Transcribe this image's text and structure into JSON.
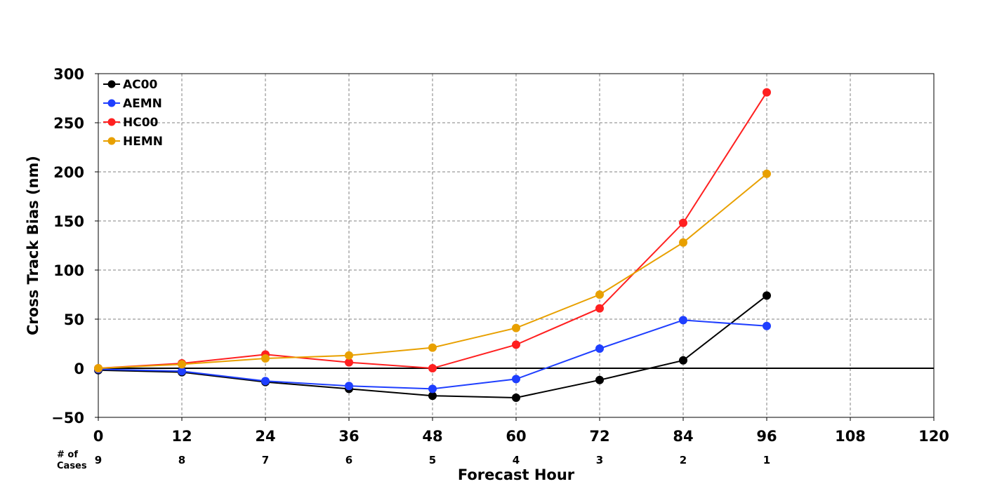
{
  "chart_data": {
    "type": "line",
    "xlabel": "Forecast Hour",
    "ylabel": "Cross Track Bias (nm)",
    "xlim": [
      0,
      120
    ],
    "ylim": [
      -50,
      300
    ],
    "x_ticks": [
      0,
      12,
      24,
      36,
      48,
      60,
      72,
      84,
      96,
      108,
      120
    ],
    "y_ticks": [
      -50,
      0,
      50,
      100,
      150,
      200,
      250,
      300
    ],
    "y_tick_labels": [
      "−50",
      "0",
      "50",
      "100",
      "150",
      "200",
      "250",
      "300"
    ],
    "grid": true,
    "zero_line": true,
    "legend_position": "top-left",
    "cases_label_line1": "# of",
    "cases_label_line2": "Cases",
    "cases": [
      {
        "x": 0,
        "n": "9"
      },
      {
        "x": 12,
        "n": "8"
      },
      {
        "x": 24,
        "n": "7"
      },
      {
        "x": 36,
        "n": "6"
      },
      {
        "x": 48,
        "n": "5"
      },
      {
        "x": 60,
        "n": "4"
      },
      {
        "x": 72,
        "n": "3"
      },
      {
        "x": 84,
        "n": "2"
      },
      {
        "x": 96,
        "n": "1"
      }
    ],
    "x": [
      0,
      12,
      24,
      36,
      48,
      60,
      72,
      84,
      96
    ],
    "series": [
      {
        "name": "AC00",
        "color": "#000000",
        "values": [
          -2,
          -4,
          -14,
          -21,
          -28,
          -30,
          -12,
          8,
          74
        ]
      },
      {
        "name": "AEMN",
        "color": "#1f3fff",
        "values": [
          -1,
          -3,
          -13,
          -18,
          -21,
          -11,
          20,
          49,
          43
        ]
      },
      {
        "name": "HC00",
        "color": "#ff2020",
        "values": [
          0,
          5,
          14,
          6,
          0,
          24,
          61,
          148,
          281
        ]
      },
      {
        "name": "HEMN",
        "color": "#e8a000",
        "values": [
          0,
          4,
          10,
          13,
          21,
          41,
          75,
          128,
          198
        ]
      }
    ]
  }
}
